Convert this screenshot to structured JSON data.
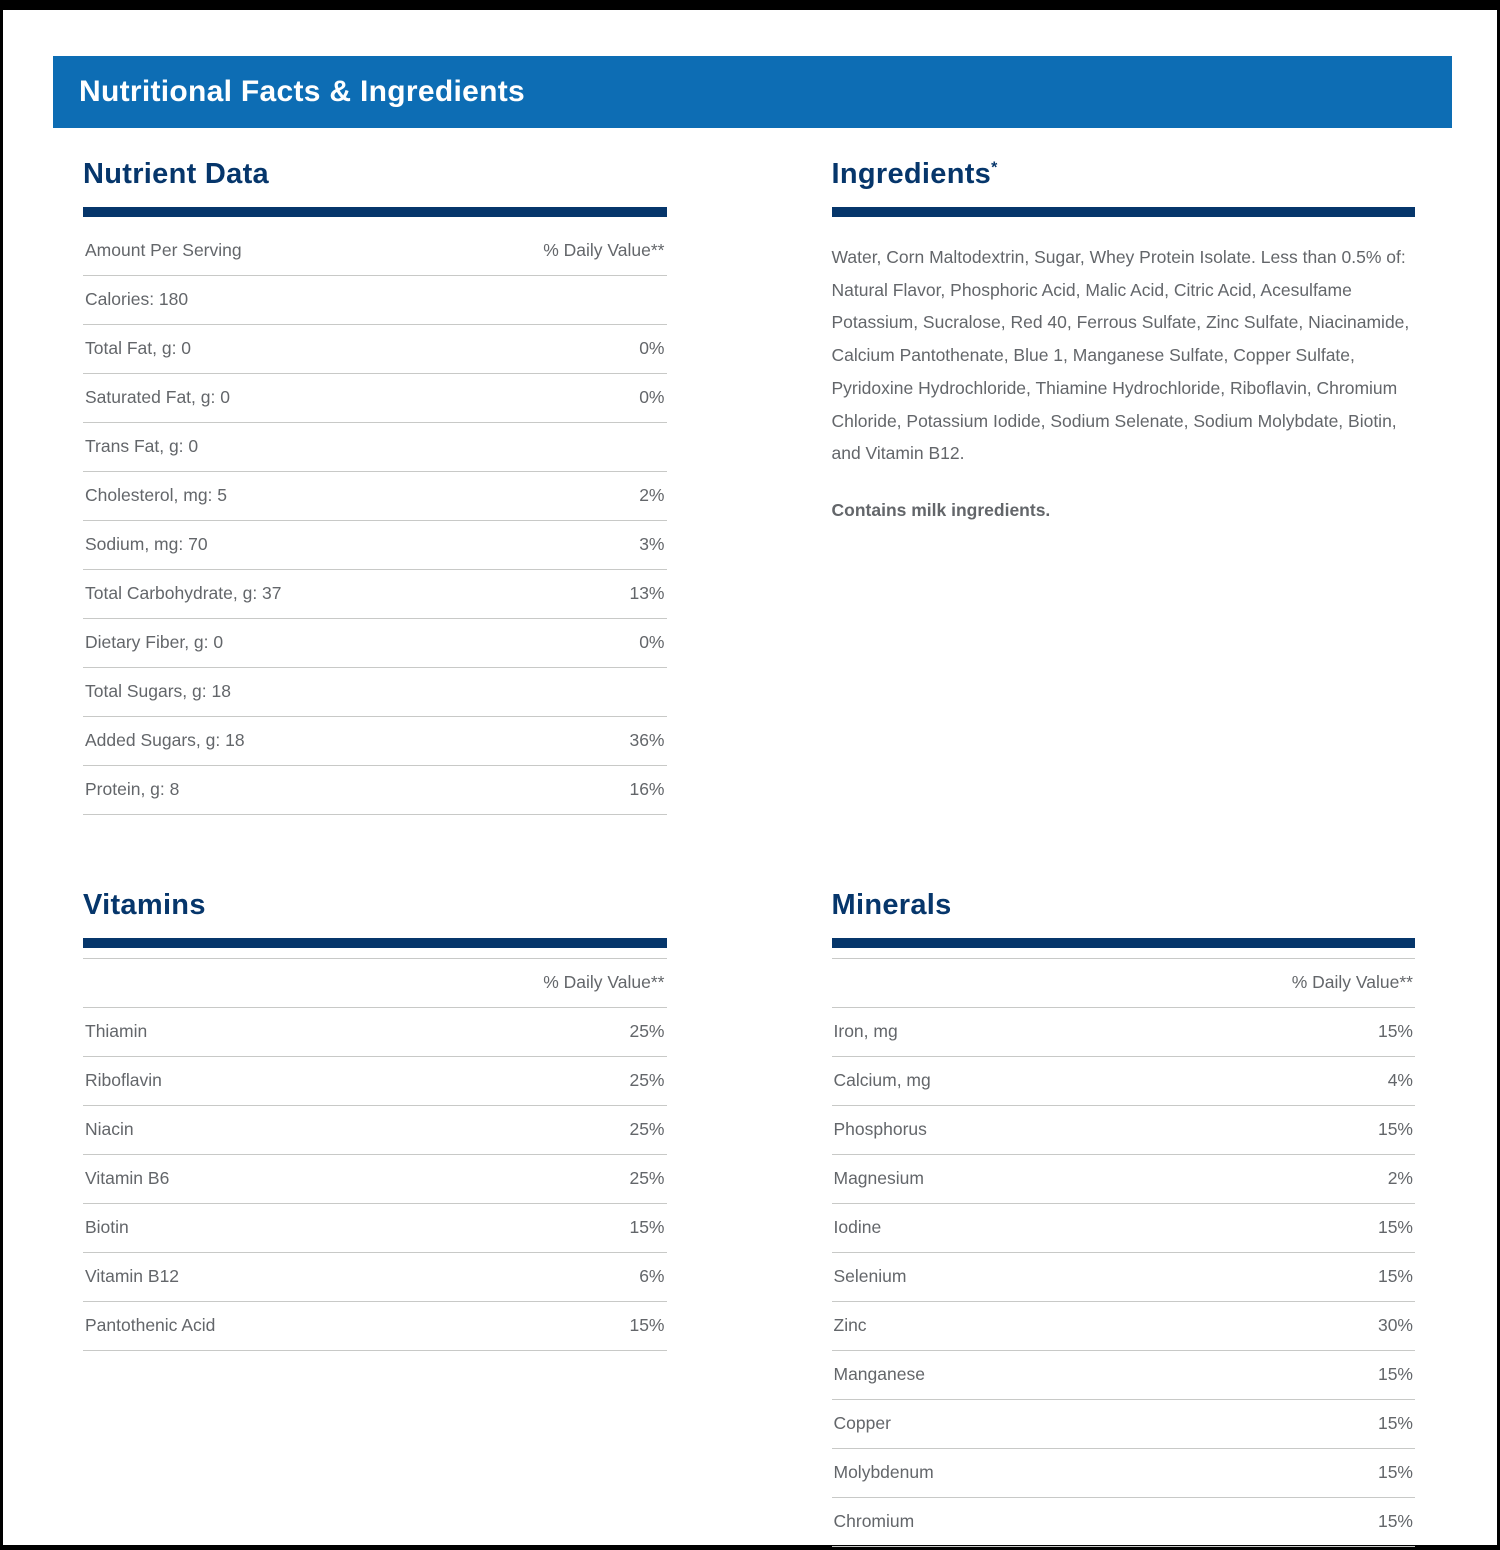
{
  "title_bar": {
    "title": "Nutritional Facts & Ingredients"
  },
  "nutrient_data": {
    "heading": "Nutrient Data",
    "header": {
      "label": "Amount Per Serving",
      "value": "% Daily Value**"
    },
    "rows": [
      {
        "label": "Calories: 180",
        "value": ""
      },
      {
        "label": "Total Fat, g: 0",
        "value": "0%"
      },
      {
        "label": "Saturated Fat, g: 0",
        "value": "0%"
      },
      {
        "label": "Trans Fat, g: 0",
        "value": ""
      },
      {
        "label": "Cholesterol, mg: 5",
        "value": "2%"
      },
      {
        "label": "Sodium, mg: 70",
        "value": "3%"
      },
      {
        "label": "Total Carbohydrate, g: 37",
        "value": "13%"
      },
      {
        "label": "Dietary Fiber, g: 0",
        "value": "0%"
      },
      {
        "label": "Total Sugars, g: 18",
        "value": ""
      },
      {
        "label": "Added Sugars, g: 18",
        "value": "36%"
      },
      {
        "label": "Protein, g: 8",
        "value": "16%"
      }
    ]
  },
  "ingredients": {
    "heading": "Ingredients",
    "heading_mark": "*",
    "text": "Water, Corn Maltodextrin, Sugar, Whey Protein Isolate. Less than 0.5% of: Natural Flavor, Phosphoric Acid, Malic Acid, Citric Acid, Acesulfame Potassium, Sucralose, Red 40, Ferrous Sulfate, Zinc Sulfate, Niacinamide, Calcium Pantothenate, Blue 1, Manganese Sulfate, Copper Sulfate, Pyridoxine Hydrochloride, Thiamine Hydrochloride, Riboflavin, Chromium Chloride, Potassium Iodide, Sodium Selenate, Sodium Molybdate, Biotin, and Vitamin B12.",
    "allergen": "Contains milk ingredients."
  },
  "vitamins": {
    "heading": "Vitamins",
    "header": {
      "label": "",
      "value": "% Daily Value**"
    },
    "rows": [
      {
        "label": "Thiamin",
        "value": "25%"
      },
      {
        "label": "Riboflavin",
        "value": "25%"
      },
      {
        "label": "Niacin",
        "value": "25%"
      },
      {
        "label": "Vitamin B6",
        "value": "25%"
      },
      {
        "label": "Biotin",
        "value": "15%"
      },
      {
        "label": "Vitamin B12",
        "value": "6%"
      },
      {
        "label": "Pantothenic Acid",
        "value": "15%"
      }
    ]
  },
  "minerals": {
    "heading": "Minerals",
    "header": {
      "label": "",
      "value": "% Daily Value**"
    },
    "rows": [
      {
        "label": "Iron, mg",
        "value": "15%"
      },
      {
        "label": "Calcium, mg",
        "value": "4%"
      },
      {
        "label": "Phosphorus",
        "value": "15%"
      },
      {
        "label": "Magnesium",
        "value": "2%"
      },
      {
        "label": "Iodine",
        "value": "15%"
      },
      {
        "label": "Selenium",
        "value": "15%"
      },
      {
        "label": "Zinc",
        "value": "30%"
      },
      {
        "label": "Manganese",
        "value": "15%"
      },
      {
        "label": "Copper",
        "value": "15%"
      },
      {
        "label": "Molybdenum",
        "value": "15%"
      },
      {
        "label": "Chromium",
        "value": "15%"
      }
    ]
  },
  "colors": {
    "header_bar_blue": "#0d6db4",
    "navy": "#06366b",
    "body_text": "#63666a",
    "divider": "#c8c9c7"
  }
}
